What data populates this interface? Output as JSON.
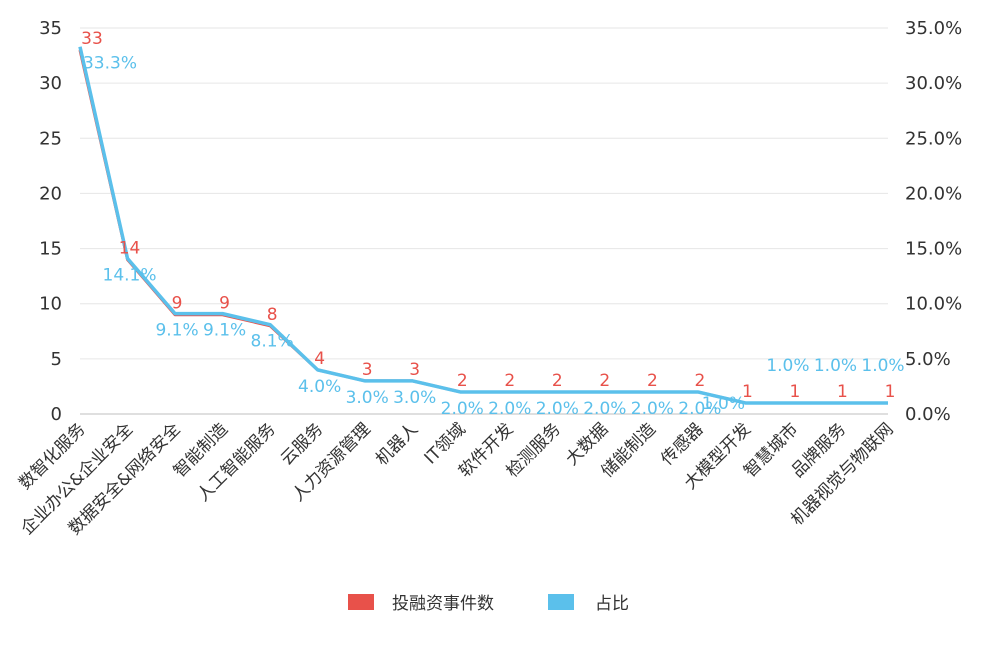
{
  "chart_data": {
    "type": "line",
    "categories": [
      "数智化服务",
      "企业办公&企业安全",
      "数据安全&网络安全",
      "智能制造",
      "人工智能服务",
      "云服务",
      "人力资源管理",
      "机器人",
      "IT领域",
      "软件开发",
      "检测服务",
      "大数据",
      "储能制造",
      "传感器",
      "大模型开发",
      "智慧城市",
      "品牌服务",
      "机器视觉与物联网"
    ],
    "series": [
      {
        "name": "投融资事件数",
        "axis": "left",
        "color": "#e8514a",
        "values": [
          33,
          14,
          9,
          9,
          8,
          4,
          3,
          3,
          2,
          2,
          2,
          2,
          2,
          2,
          1,
          1,
          1,
          1
        ],
        "labels": [
          "33",
          "14",
          "9",
          "9",
          "8",
          "4",
          "3",
          "3",
          "2",
          "2",
          "2",
          "2",
          "2",
          "2",
          "1",
          "1",
          "1",
          "1"
        ]
      },
      {
        "name": "占比",
        "axis": "right",
        "color": "#5bc0eb",
        "values": [
          33.3,
          14.1,
          9.1,
          9.1,
          8.1,
          4.0,
          3.0,
          3.0,
          2.0,
          2.0,
          2.0,
          2.0,
          2.0,
          2.0,
          1.0,
          1.0,
          1.0,
          1.0
        ],
        "labels": [
          "33.3%",
          "14.1%",
          "9.1%",
          "9.1%",
          "8.1%",
          "4.0%",
          "3.0%",
          "3.0%",
          "2.0%",
          "2.0%",
          "2.0%",
          "2.0%",
          "2.0%",
          "2.0%",
          "1.0%",
          "1.0%",
          "1.0%",
          "1.0%"
        ]
      }
    ],
    "y_left": {
      "min": 0,
      "max": 35,
      "ticks": [
        "0",
        "5",
        "10",
        "15",
        "20",
        "25",
        "30",
        "35"
      ]
    },
    "y_right": {
      "min": 0,
      "max": 35,
      "ticks": [
        "0.0%",
        "5.0%",
        "10.0%",
        "15.0%",
        "20.0%",
        "25.0%",
        "30.0%",
        "35.0%"
      ]
    },
    "grid": true,
    "legend": "bottom-center"
  }
}
